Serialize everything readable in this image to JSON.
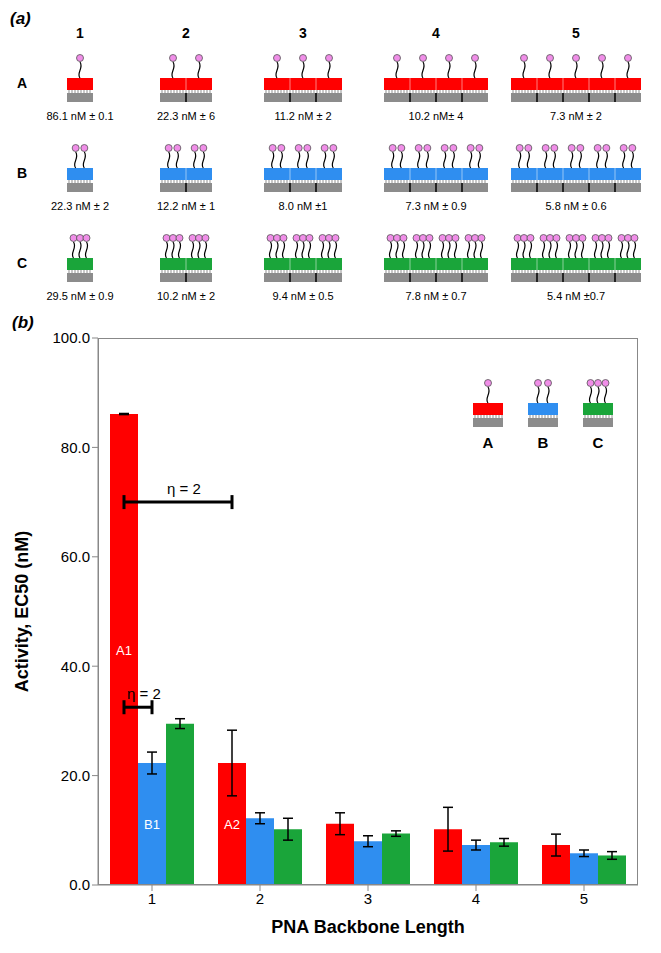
{
  "panel_a": {
    "label": "(a)",
    "columns": [
      1,
      2,
      3,
      4,
      5
    ],
    "rows": [
      {
        "label": "A",
        "color": "#ff0000",
        "valency": 1,
        "texts": [
          "86.1 nM ± 0.1",
          "22.3 nM ± 6",
          "11.2 nM ± 2",
          "10.2 nM± 4",
          "7.3 nM ± 2"
        ]
      },
      {
        "label": "B",
        "color": "#2f8ef0",
        "valency": 2,
        "texts": [
          "22.3 nM ± 2",
          "12.2 nM ± 1",
          "8.0 nM ±1",
          "7.3 nM ± 0.9",
          "5.8 nM ± 0.6"
        ]
      },
      {
        "label": "C",
        "color": "#1aa53a",
        "valency": 3,
        "texts": [
          "29.5 nM ± 0.9",
          "10.2 nM ± 2",
          "9.4 nM ± 0.5",
          "7.8 nM ± 0.7",
          "5.4 nM ±0.7"
        ]
      }
    ]
  },
  "chart_data": {
    "type": "bar",
    "title": "(b)",
    "x_label": "PNA Backbone Length",
    "y_label": "Activity, EC50 (nM)",
    "categories": [
      "1",
      "2",
      "3",
      "4",
      "5"
    ],
    "series": [
      {
        "name": "A",
        "color": "#ff0000",
        "values": [
          86.1,
          22.3,
          11.2,
          10.2,
          7.3
        ],
        "errors": [
          0.1,
          6,
          2,
          4,
          2
        ]
      },
      {
        "name": "B",
        "color": "#2f8ef0",
        "values": [
          22.3,
          12.2,
          8.0,
          7.3,
          5.8
        ],
        "errors": [
          2,
          1,
          1,
          0.9,
          0.6
        ]
      },
      {
        "name": "C",
        "color": "#1aa53a",
        "values": [
          29.5,
          10.2,
          9.4,
          7.8,
          5.4
        ],
        "errors": [
          0.9,
          2,
          0.5,
          0.7,
          0.7
        ]
      }
    ],
    "ylim": [
      0,
      100
    ],
    "yticks": [
      {
        "value": 0,
        "label": "0.0"
      },
      {
        "value": 20,
        "label": "20.0"
      },
      {
        "value": 40,
        "label": "40.0"
      },
      {
        "value": 60,
        "label": "60.0"
      },
      {
        "value": 80,
        "label": "80.0"
      },
      {
        "value": 100,
        "label": "100.0"
      }
    ],
    "grid": false,
    "legend": "upper right",
    "bar_labels": [
      {
        "series": "A",
        "category": "1",
        "text": "A1"
      },
      {
        "series": "B",
        "category": "1",
        "text": "B1"
      },
      {
        "series": "A",
        "category": "2",
        "text": "A2"
      }
    ],
    "annotations": [
      {
        "text": "η = 2",
        "from": "A1",
        "to": "A2"
      },
      {
        "text": "η = 2",
        "from": "A1",
        "to": "B1"
      }
    ]
  }
}
